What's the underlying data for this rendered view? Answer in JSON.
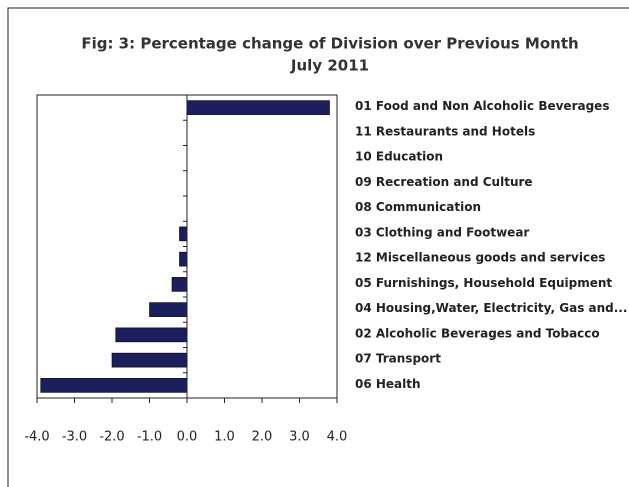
{
  "chart_data": {
    "type": "bar",
    "orientation": "horizontal",
    "title": "Fig: 3: Percentage change of Division over Previous Month",
    "subtitle": "July 2011",
    "categories": [
      "01 Food and Non Alcoholic Beverages",
      "11 Restaurants and Hotels",
      "10 Education",
      "09 Recreation and Culture",
      "08 Communication",
      "03 Clothing and Footwear",
      "12 Miscellaneous goods and services",
      "05 Furnishings, Household Equipment",
      "04 Housing,Water, Electricity, Gas and...",
      "02 Alcoholic Beverages and Tobacco",
      "07 Transport",
      "06 Health"
    ],
    "values": [
      3.8,
      0,
      0,
      0,
      0,
      -0.2,
      -0.2,
      -0.4,
      -1.0,
      -1.9,
      -2.0,
      -3.9
    ],
    "color": "#1b1f5e",
    "xlim": [
      -4,
      4
    ],
    "xticks": [
      {
        "value": -4,
        "label": "-4.0"
      },
      {
        "value": -3,
        "label": "-3.0"
      },
      {
        "value": -2,
        "label": "-2.0"
      },
      {
        "value": -1,
        "label": "-1.0"
      },
      {
        "value": 0,
        "label": "0.0"
      },
      {
        "value": 1,
        "label": "1.0"
      },
      {
        "value": 2,
        "label": "2.0"
      },
      {
        "value": 3,
        "label": "3.0"
      },
      {
        "value": 4,
        "label": "4.0"
      }
    ],
    "grid": false
  }
}
